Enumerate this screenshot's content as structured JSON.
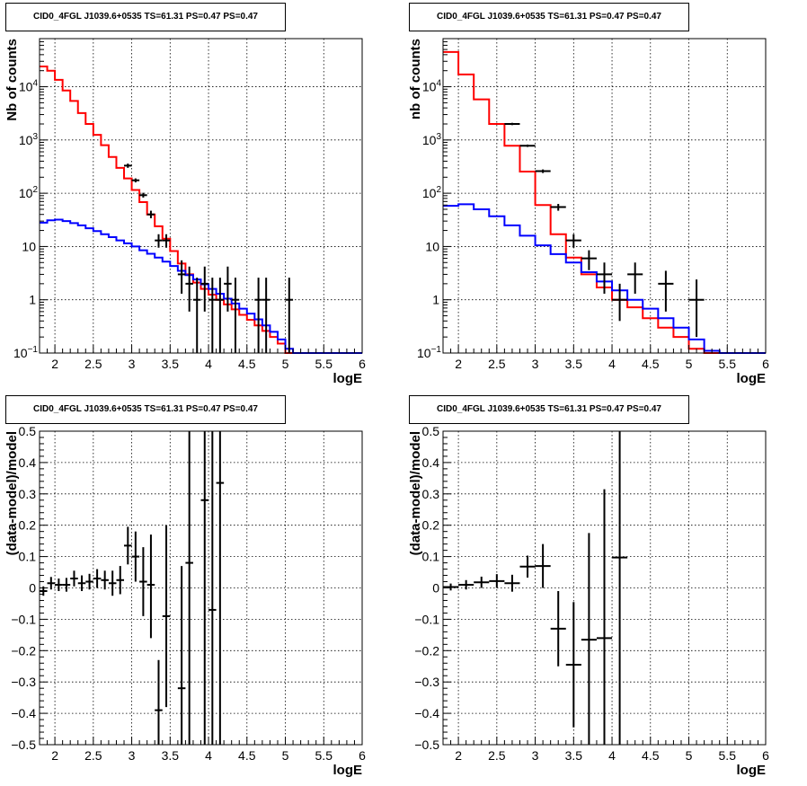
{
  "panels": [
    {
      "id": "top-left",
      "title": "CID0_4FGL J1039.6+0535 TS=61.31 PS=0.47 PS=0.47",
      "chart_data": {
        "type": "line",
        "xlabel": "logE",
        "ylabel": "Nb of counts",
        "xlim": [
          1.8,
          6
        ],
        "ylim": [
          0.1,
          80000
        ],
        "yscale": "log",
        "grid": true,
        "x_ticks": [
          "2",
          "2.5",
          "3",
          "3.5",
          "4",
          "4.5",
          "5",
          "5.5",
          "6"
        ],
        "y_ticks": [
          {
            "value": 0.1,
            "label": "10",
            "exp": "−1"
          },
          {
            "value": 1,
            "label": "1",
            "exp": ""
          },
          {
            "value": 10,
            "label": "10",
            "exp": ""
          },
          {
            "value": 100,
            "label": "10",
            "exp": "2"
          },
          {
            "value": 1000,
            "label": "10",
            "exp": "3"
          },
          {
            "value": 10000,
            "label": "10",
            "exp": "4"
          }
        ],
        "bin_edges": [
          1.8,
          1.9,
          2.0,
          2.1,
          2.2,
          2.3,
          2.4,
          2.5,
          2.6,
          2.7,
          2.8,
          2.9,
          3.0,
          3.1,
          3.2,
          3.3,
          3.4,
          3.5,
          3.6,
          3.7,
          3.8,
          3.9,
          4.0,
          4.1,
          4.2,
          4.3,
          4.4,
          4.5,
          4.6,
          4.7,
          4.8,
          4.9,
          5.0,
          5.1,
          5.2,
          5.3,
          5.4,
          5.5,
          5.6,
          5.7,
          5.8,
          5.9,
          6.0
        ],
        "series": [
          {
            "name": "",
            "color": "#ff0000",
            "style": "step",
            "values": [
              24000,
              20000,
              13500,
              8500,
              5400,
              3200,
              2000,
              1250,
              800,
              480,
              300,
              190,
              115,
              68,
              40,
              24,
              14,
              8.2,
              4.8,
              3.0,
              2.1,
              1.6,
              1.25,
              1.0,
              0.82,
              0.66,
              0.52,
              0.42,
              0.33,
              0.26,
              0.2,
              0.15,
              0.1,
              0.1,
              0.1,
              0.1,
              0.1,
              0.1,
              0.1,
              0.1,
              0.1,
              0.1
            ]
          },
          {
            "name": "",
            "color": "#0000ff",
            "style": "step",
            "values": [
              28,
              31,
              32,
              30,
              27.5,
              25,
              22,
              19.5,
              17,
              15,
              13,
              11.5,
              10,
              8.5,
              7.3,
              6.2,
              5.2,
              4.3,
              3.5,
              2.9,
              2.4,
              1.95,
              1.6,
              1.3,
              1.05,
              0.85,
              0.68,
              0.55,
              0.43,
              0.33,
              0.25,
              0.18,
              0.12,
              0.1,
              0.1,
              0.1,
              0.1,
              0.1,
              0.1,
              0.1,
              0.1,
              0.1
            ]
          }
        ],
        "points": [
          {
            "x": 2.95,
            "y": 330,
            "dx": 0.05,
            "lo": 300,
            "hi": 360
          },
          {
            "x": 3.05,
            "y": 175,
            "dx": 0.05,
            "lo": 160,
            "hi": 190
          },
          {
            "x": 3.15,
            "y": 92,
            "dx": 0.05,
            "lo": 83,
            "hi": 102
          },
          {
            "x": 3.25,
            "y": 40,
            "dx": 0.05,
            "lo": 34,
            "hi": 47
          },
          {
            "x": 3.35,
            "y": 13,
            "dx": 0.05,
            "lo": 9.5,
            "hi": 17
          },
          {
            "x": 3.45,
            "y": 13,
            "dx": 0.05,
            "lo": 9.5,
            "hi": 17
          },
          {
            "x": 3.65,
            "y": 3.0,
            "dx": 0.05,
            "lo": 1.3,
            "hi": 5.5
          },
          {
            "x": 3.75,
            "y": 2.0,
            "dx": 0.05,
            "lo": 0.6,
            "hi": 4.2
          },
          {
            "x": 3.85,
            "y": 1.0,
            "dx": 0.05,
            "lo": 0.1,
            "hi": 2.6
          },
          {
            "x": 3.95,
            "y": 2.0,
            "dx": 0.05,
            "lo": 0.6,
            "hi": 4.2
          },
          {
            "x": 4.05,
            "y": 1.0,
            "dx": 0.05,
            "lo": 0.1,
            "hi": 2.6
          },
          {
            "x": 4.15,
            "y": 1.0,
            "dx": 0.05,
            "lo": 0.1,
            "hi": 2.6
          },
          {
            "x": 4.25,
            "y": 2.0,
            "dx": 0.05,
            "lo": 0.6,
            "hi": 4.2
          },
          {
            "x": 4.35,
            "y": 1.0,
            "dx": 0.05,
            "lo": 0.1,
            "hi": 2.6
          },
          {
            "x": 4.65,
            "y": 1.0,
            "dx": 0.05,
            "lo": 0.1,
            "hi": 2.6
          },
          {
            "x": 4.75,
            "y": 1.0,
            "dx": 0.05,
            "lo": 0.1,
            "hi": 2.6
          },
          {
            "x": 5.05,
            "y": 1.0,
            "dx": 0.05,
            "lo": 0.1,
            "hi": 2.6
          }
        ]
      }
    },
    {
      "id": "top-right",
      "title": "CID0_4FGL J1039.6+0535 TS=61.31 PS=0.47 PS=0.47",
      "chart_data": {
        "type": "line",
        "xlabel": "logE",
        "ylabel": "nb of counts",
        "xlim": [
          1.8,
          6
        ],
        "ylim": [
          0.1,
          80000
        ],
        "yscale": "log",
        "grid": true,
        "x_ticks": [
          "2",
          "2.5",
          "3",
          "3.5",
          "4",
          "4.5",
          "5",
          "5.5",
          "6"
        ],
        "y_ticks": [
          {
            "value": 0.1,
            "label": "10",
            "exp": "−1"
          },
          {
            "value": 1,
            "label": "1",
            "exp": ""
          },
          {
            "value": 10,
            "label": "10",
            "exp": ""
          },
          {
            "value": 100,
            "label": "10",
            "exp": "2"
          },
          {
            "value": 1000,
            "label": "10",
            "exp": "3"
          },
          {
            "value": 10000,
            "label": "10",
            "exp": "4"
          }
        ],
        "bin_edges": [
          1.8,
          2.0,
          2.2,
          2.4,
          2.6,
          2.8,
          3.0,
          3.2,
          3.4,
          3.6,
          3.8,
          4.0,
          4.2,
          4.4,
          4.6,
          4.8,
          5.0,
          5.2,
          5.4,
          5.6,
          5.8,
          6.0
        ],
        "series": [
          {
            "name": "",
            "color": "#ff0000",
            "style": "step",
            "values": [
              45000,
              17000,
              5800,
              2000,
              780,
              255,
              60,
              17,
              6.2,
              3.0,
              1.7,
              1.0,
              0.72,
              0.45,
              0.3,
              0.2,
              0.12,
              0.1,
              0.1,
              0.1,
              0.1
            ]
          },
          {
            "name": "",
            "color": "#0000ff",
            "style": "step",
            "values": [
              58,
              62,
              50,
              37,
              25,
              16,
              10.5,
              7.2,
              5.0,
              3.3,
              2.2,
              1.5,
              1.0,
              0.68,
              0.45,
              0.3,
              0.18,
              0.11,
              0.1,
              0.1,
              0.1
            ]
          }
        ],
        "points": [
          {
            "x": 2.7,
            "y": 2000,
            "dx": 0.1,
            "lo": 1900,
            "hi": 2100
          },
          {
            "x": 2.9,
            "y": 780,
            "dx": 0.1,
            "lo": 740,
            "hi": 820
          },
          {
            "x": 3.1,
            "y": 260,
            "dx": 0.1,
            "lo": 240,
            "hi": 280
          },
          {
            "x": 3.3,
            "y": 55,
            "dx": 0.1,
            "lo": 47,
            "hi": 63
          },
          {
            "x": 3.5,
            "y": 13,
            "dx": 0.1,
            "lo": 9.5,
            "hi": 17
          },
          {
            "x": 3.7,
            "y": 6.0,
            "dx": 0.1,
            "lo": 3.6,
            "hi": 8.5
          },
          {
            "x": 3.9,
            "y": 3.0,
            "dx": 0.1,
            "lo": 1.3,
            "hi": 5.0
          },
          {
            "x": 4.1,
            "y": 1.0,
            "dx": 0.1,
            "lo": 0.4,
            "hi": 2.0
          },
          {
            "x": 4.3,
            "y": 3.0,
            "dx": 0.1,
            "lo": 1.3,
            "hi": 5.0
          },
          {
            "x": 4.7,
            "y": 2.0,
            "dx": 0.1,
            "lo": 0.6,
            "hi": 3.5
          },
          {
            "x": 5.1,
            "y": 1.0,
            "dx": 0.1,
            "lo": 0.2,
            "hi": 2.4
          }
        ]
      }
    },
    {
      "id": "bottom-left",
      "title": "CID0_4FGL J1039.6+0535 TS=61.31 PS=0.47 PS=0.47",
      "chart_data": {
        "type": "scatter",
        "xlabel": "logE",
        "ylabel": "(data-model)/model",
        "xlim": [
          1.8,
          6
        ],
        "ylim": [
          -0.5,
          0.5
        ],
        "yscale": "linear",
        "grid": true,
        "x_ticks": [
          "2",
          "2.5",
          "3",
          "3.5",
          "4",
          "4.5",
          "5",
          "5.5",
          "6"
        ],
        "y_ticks": [
          {
            "value": -0.5,
            "label": "−0.5"
          },
          {
            "value": -0.4,
            "label": "−0.4"
          },
          {
            "value": -0.3,
            "label": "−0.3"
          },
          {
            "value": -0.2,
            "label": "−0.2"
          },
          {
            "value": -0.1,
            "label": "−0.1"
          },
          {
            "value": 0,
            "label": "0"
          },
          {
            "value": 0.1,
            "label": "0.1"
          },
          {
            "value": 0.2,
            "label": "0.2"
          },
          {
            "value": 0.3,
            "label": "0.3"
          },
          {
            "value": 0.4,
            "label": "0.4"
          },
          {
            "value": 0.5,
            "label": "0.5"
          }
        ],
        "points": [
          {
            "x": 1.85,
            "y": -0.01,
            "dx": 0.05,
            "lo": -0.025,
            "hi": 0.005
          },
          {
            "x": 1.95,
            "y": 0.015,
            "dx": 0.05,
            "lo": -0.005,
            "hi": 0.035
          },
          {
            "x": 2.05,
            "y": 0.01,
            "dx": 0.05,
            "lo": -0.01,
            "hi": 0.03
          },
          {
            "x": 2.15,
            "y": 0.01,
            "dx": 0.05,
            "lo": -0.012,
            "hi": 0.032
          },
          {
            "x": 2.25,
            "y": 0.03,
            "dx": 0.05,
            "lo": 0.005,
            "hi": 0.055
          },
          {
            "x": 2.35,
            "y": 0.015,
            "dx": 0.05,
            "lo": -0.01,
            "hi": 0.04
          },
          {
            "x": 2.45,
            "y": 0.02,
            "dx": 0.05,
            "lo": -0.005,
            "hi": 0.045
          },
          {
            "x": 2.55,
            "y": 0.03,
            "dx": 0.05,
            "lo": 0.0,
            "hi": 0.06
          },
          {
            "x": 2.65,
            "y": 0.025,
            "dx": 0.05,
            "lo": -0.005,
            "hi": 0.055
          },
          {
            "x": 2.75,
            "y": 0.015,
            "dx": 0.05,
            "lo": -0.025,
            "hi": 0.055
          },
          {
            "x": 2.85,
            "y": 0.025,
            "dx": 0.05,
            "lo": -0.02,
            "hi": 0.07
          },
          {
            "x": 2.95,
            "y": 0.135,
            "dx": 0.05,
            "lo": 0.075,
            "hi": 0.195
          },
          {
            "x": 3.05,
            "y": 0.1,
            "dx": 0.05,
            "lo": 0.02,
            "hi": 0.18
          },
          {
            "x": 3.15,
            "y": 0.02,
            "dx": 0.05,
            "lo": -0.09,
            "hi": 0.13
          },
          {
            "x": 3.25,
            "y": 0.01,
            "dx": 0.05,
            "lo": -0.16,
            "hi": 0.17
          },
          {
            "x": 3.35,
            "y": -0.39,
            "dx": 0.05,
            "lo": -0.5,
            "hi": -0.23
          },
          {
            "x": 3.45,
            "y": -0.09,
            "dx": 0.05,
            "lo": -0.38,
            "hi": 0.2
          },
          {
            "x": 3.65,
            "y": -0.32,
            "dx": 0.05,
            "lo": -0.5,
            "hi": 0.07
          },
          {
            "x": 3.75,
            "y": 0.08,
            "dx": 0.05,
            "lo": -0.5,
            "hi": 0.5
          },
          {
            "x": 3.95,
            "y": 0.28,
            "dx": 0.05,
            "lo": -0.5,
            "hi": 0.5
          },
          {
            "x": 4.05,
            "y": -0.07,
            "dx": 0.05,
            "lo": -0.5,
            "hi": 0.5
          },
          {
            "x": 4.15,
            "y": 0.335,
            "dx": 0.05,
            "lo": -0.5,
            "hi": 0.5
          }
        ]
      }
    },
    {
      "id": "bottom-right",
      "title": "CID0_4FGL J1039.6+0535 TS=61.31 PS=0.47 PS=0.47",
      "chart_data": {
        "type": "scatter",
        "xlabel": "logE",
        "ylabel": "(data-model)/model",
        "xlim": [
          1.8,
          6
        ],
        "ylim": [
          -0.5,
          0.5
        ],
        "yscale": "linear",
        "grid": true,
        "x_ticks": [
          "2",
          "2.5",
          "3",
          "3.5",
          "4",
          "4.5",
          "5",
          "5.5",
          "6"
        ],
        "y_ticks": [
          {
            "value": -0.5,
            "label": "−0.5"
          },
          {
            "value": -0.4,
            "label": "−0.4"
          },
          {
            "value": -0.3,
            "label": "−0.3"
          },
          {
            "value": -0.2,
            "label": "−0.2"
          },
          {
            "value": -0.1,
            "label": "−0.1"
          },
          {
            "value": 0,
            "label": "0"
          },
          {
            "value": 0.1,
            "label": "0.1"
          },
          {
            "value": 0.2,
            "label": "0.2"
          },
          {
            "value": 0.3,
            "label": "0.3"
          },
          {
            "value": 0.4,
            "label": "0.4"
          },
          {
            "value": 0.5,
            "label": "0.5"
          }
        ],
        "points": [
          {
            "x": 1.9,
            "y": 0.003,
            "dx": 0.1,
            "lo": -0.008,
            "hi": 0.014
          },
          {
            "x": 2.1,
            "y": 0.01,
            "dx": 0.1,
            "lo": -0.005,
            "hi": 0.025
          },
          {
            "x": 2.3,
            "y": 0.018,
            "dx": 0.1,
            "lo": 0.0,
            "hi": 0.036
          },
          {
            "x": 2.5,
            "y": 0.022,
            "dx": 0.1,
            "lo": 0.0,
            "hi": 0.044
          },
          {
            "x": 2.7,
            "y": 0.015,
            "dx": 0.1,
            "lo": -0.012,
            "hi": 0.042
          },
          {
            "x": 2.9,
            "y": 0.068,
            "dx": 0.1,
            "lo": 0.033,
            "hi": 0.103
          },
          {
            "x": 3.1,
            "y": 0.07,
            "dx": 0.1,
            "lo": 0.0,
            "hi": 0.14
          },
          {
            "x": 3.3,
            "y": -0.13,
            "dx": 0.1,
            "lo": -0.25,
            "hi": -0.01
          },
          {
            "x": 3.5,
            "y": -0.245,
            "dx": 0.1,
            "lo": -0.445,
            "hi": -0.045
          },
          {
            "x": 3.7,
            "y": -0.165,
            "dx": 0.1,
            "lo": -0.5,
            "hi": 0.175
          },
          {
            "x": 3.9,
            "y": -0.16,
            "dx": 0.1,
            "lo": -0.5,
            "hi": 0.315
          },
          {
            "x": 4.1,
            "y": 0.097,
            "dx": 0.1,
            "lo": -0.5,
            "hi": 0.5
          }
        ]
      }
    }
  ]
}
